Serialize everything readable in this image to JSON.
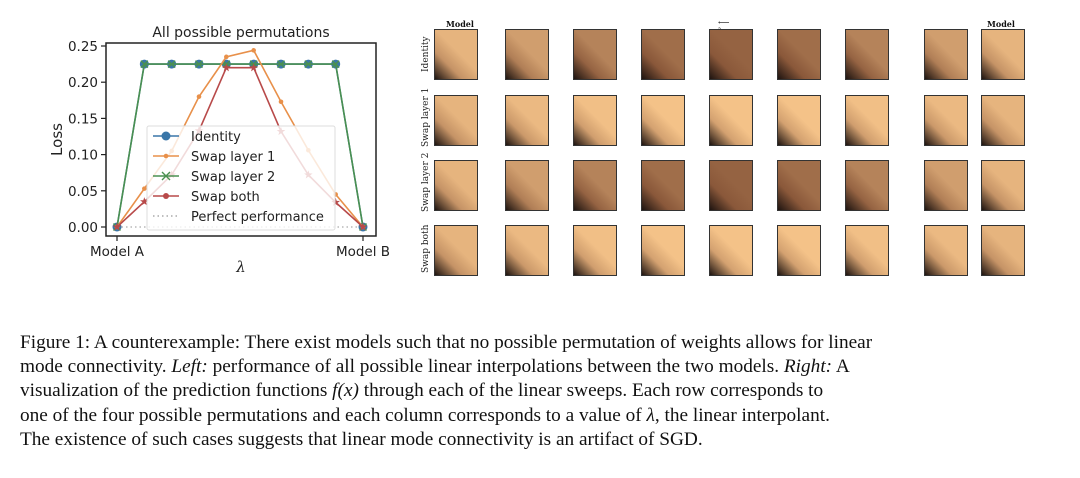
{
  "chart_data": {
    "type": "line",
    "title": "All possible permutations",
    "xlabel": "λ",
    "ylabel": "Loss",
    "x": [
      0,
      0.1111,
      0.2222,
      0.3333,
      0.4444,
      0.5556,
      0.6667,
      0.7778,
      0.8889,
      1
    ],
    "xticks": [
      {
        "value": 0,
        "label": "Model A"
      },
      {
        "value": 1,
        "label": "Model B"
      }
    ],
    "ylim": [
      -0.012,
      0.262
    ],
    "yticks": [
      "0.00",
      "0.05",
      "0.10",
      "0.15",
      "0.20",
      "0.25"
    ],
    "legend_position": "center",
    "series": [
      {
        "name": "Identity",
        "color": "#3a76a8",
        "marker": "circle",
        "values": [
          0,
          0.225,
          0.225,
          0.225,
          0.225,
          0.225,
          0.225,
          0.225,
          0.225,
          0
        ]
      },
      {
        "name": "Swap layer 1",
        "color": "#e8904a",
        "marker": "dot",
        "values": [
          0,
          0.053,
          0.105,
          0.18,
          0.235,
          0.244,
          0.173,
          0.106,
          0.045,
          0
        ]
      },
      {
        "name": "Swap layer 2",
        "color": "#4a9050",
        "marker": "x",
        "values": [
          0,
          0.225,
          0.225,
          0.225,
          0.225,
          0.225,
          0.225,
          0.225,
          0.225,
          0
        ]
      },
      {
        "name": "Swap both",
        "color": "#b84a4a",
        "marker": "star",
        "values": [
          0,
          0.035,
          0.072,
          0.133,
          0.22,
          0.22,
          0.132,
          0.072,
          0.034,
          0
        ]
      },
      {
        "name": "Perfect performance",
        "color": "#aaaaaa",
        "marker": "none",
        "dotted": true,
        "values": [
          0,
          0,
          0,
          0,
          0,
          0,
          0,
          0,
          0,
          0
        ]
      }
    ]
  },
  "grid": {
    "col_left": "Model A",
    "col_mid": "⟵ λ ⟶",
    "col_right": "Model B",
    "rows": [
      {
        "label": "Identity",
        "darkness": [
          0.15,
          0.35,
          0.6,
          0.8,
          0.9,
          0.8,
          0.6,
          0.35,
          0.15
        ]
      },
      {
        "label": "Swap layer 1",
        "darkness": [
          0.15,
          0.1,
          0.05,
          0.02,
          0.02,
          0.02,
          0.05,
          0.1,
          0.15
        ]
      },
      {
        "label": "Swap layer 2",
        "darkness": [
          0.15,
          0.35,
          0.6,
          0.8,
          0.9,
          0.8,
          0.6,
          0.35,
          0.15
        ]
      },
      {
        "label": "Swap both",
        "darkness": [
          0.15,
          0.1,
          0.05,
          0.02,
          0.02,
          0.02,
          0.05,
          0.1,
          0.15
        ]
      }
    ]
  },
  "caption": {
    "lines": [
      "Figure 1: A counterexample: There exist models such that no possible permutation of weights allows for linear",
      "mode connectivity. |Left:| performance of all possible linear interpolations between the two models. |Right:| A",
      "visualization of the prediction functions |f(x)| through each of the linear sweeps. Each row corresponds to",
      "one of the four possible permutations and each column corresponds to a value of |λ|, the linear interpolant.",
      "The existence of such cases suggests that linear mode connectivity is an artifact of SGD."
    ]
  }
}
